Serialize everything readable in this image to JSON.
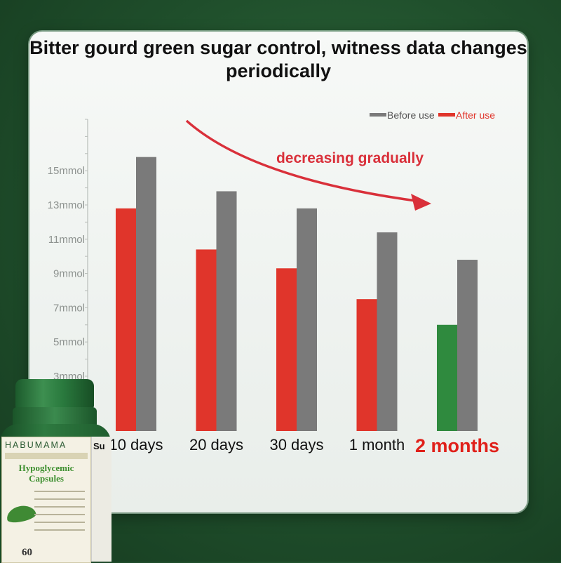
{
  "title": "Bitter gourd green sugar control, witness data changes periodically",
  "annotation": "decreasing gradually",
  "colors": {
    "before": "#7a7a7a",
    "after": "#e0352b",
    "highlight": "#2f8a3e",
    "highlight_label": "#e0201a",
    "arrow": "#d9303a"
  },
  "chart_data": {
    "type": "bar",
    "title": "Bitter gourd green sugar control, witness data changes periodically",
    "categories": [
      "10 days",
      "20 days",
      "30 days",
      "1 month",
      "2 months"
    ],
    "series": [
      {
        "name": "Before use",
        "values": [
          15.8,
          13.8,
          12.8,
          11.4,
          9.8
        ]
      },
      {
        "name": "After use",
        "values": [
          12.8,
          10.4,
          9.3,
          7.5,
          6.0
        ]
      }
    ],
    "yticks": [
      "3mmol",
      "5mmol",
      "7mmol",
      "9mmol",
      "11mmol",
      "13mmol",
      "15mmol"
    ],
    "ytick_values": [
      3,
      5,
      7,
      9,
      11,
      13,
      15
    ],
    "ylim": [
      -0.2,
      18
    ],
    "legend": "top-right",
    "highlight_category": "2 months"
  },
  "product": {
    "brand": "HABUMAMA",
    "name": "Hypoglycemic Capsules",
    "count": "60",
    "side_text": "Su"
  }
}
